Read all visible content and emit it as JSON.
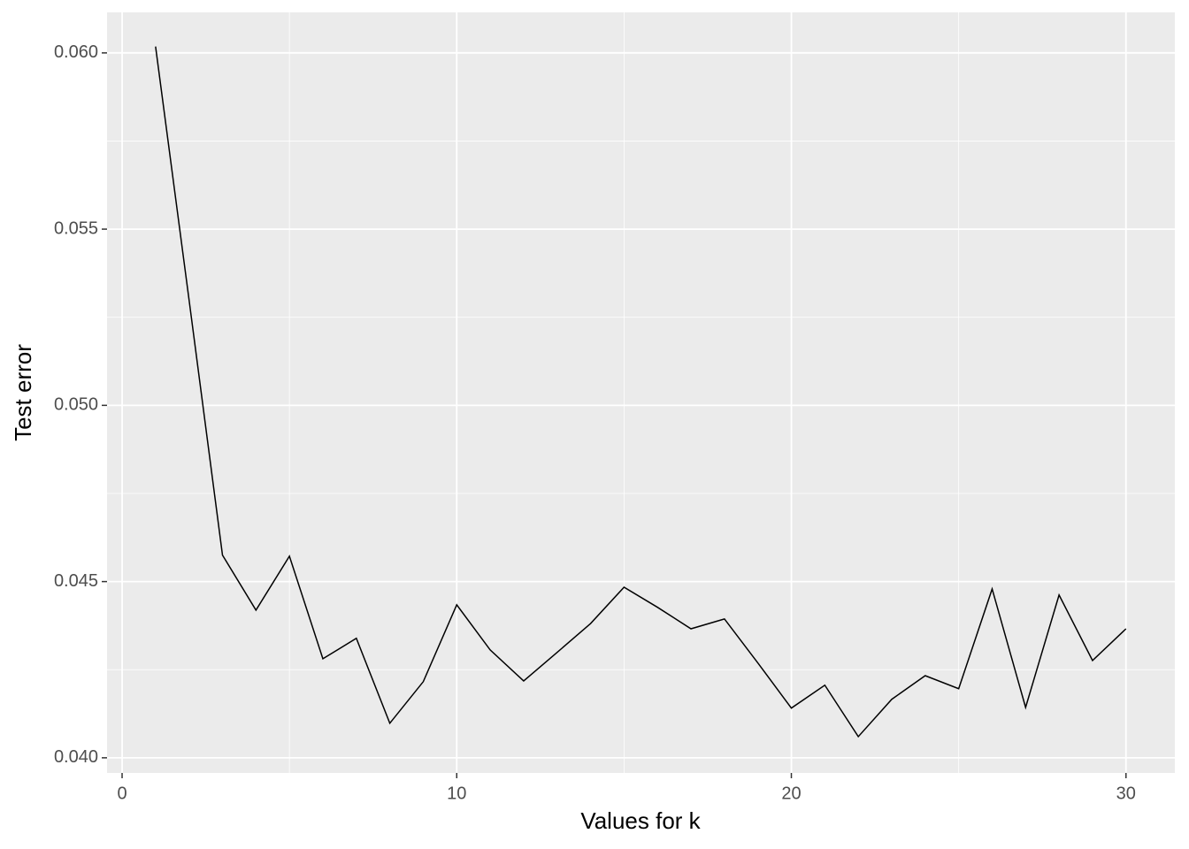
{
  "chart_data": {
    "type": "line",
    "x_label": "Values for k",
    "y_label": "Test error",
    "x": [
      1,
      2,
      3,
      4,
      5,
      6,
      7,
      8,
      9,
      10,
      11,
      12,
      13,
      14,
      15,
      16,
      17,
      18,
      19,
      20,
      21,
      22,
      23,
      24,
      25,
      26,
      27,
      28,
      29,
      30
    ],
    "series": [
      {
        "name": "Test error",
        "color": "#000000",
        "values": [
          0.06018,
          0.053,
          0.04575,
          0.04419,
          0.04572,
          0.04281,
          0.04339,
          0.04098,
          0.04216,
          0.04434,
          0.04306,
          0.04218,
          0.04299,
          0.04381,
          0.04484,
          0.04427,
          0.04366,
          0.04394,
          0.04269,
          0.04141,
          0.04206,
          0.0406,
          0.04166,
          0.04233,
          0.04196,
          0.04479,
          0.04143,
          0.04462,
          0.04276,
          0.04366
        ]
      }
    ],
    "xlim": [
      -0.45,
      31.46
    ],
    "ylim": [
      0.03957,
      0.06115
    ],
    "xticks": [
      0,
      10,
      20,
      30
    ],
    "yticks": [
      {
        "value": 0.04,
        "label": "0.040"
      },
      {
        "value": 0.045,
        "label": "0.045"
      },
      {
        "value": 0.05,
        "label": "0.050"
      },
      {
        "value": 0.055,
        "label": "0.055"
      },
      {
        "value": 0.06,
        "label": "0.060"
      }
    ],
    "grid": true
  }
}
